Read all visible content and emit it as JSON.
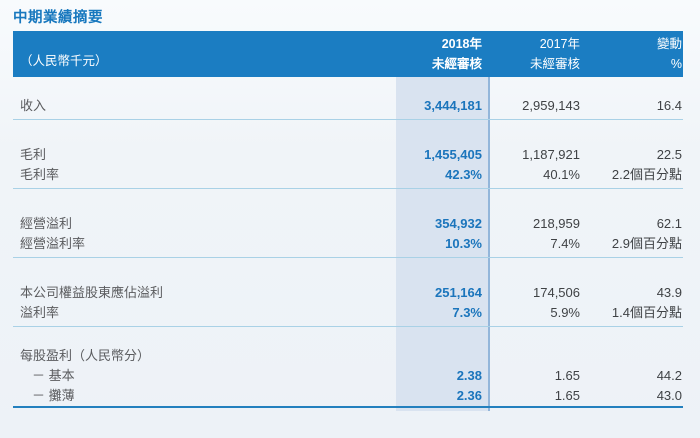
{
  "page": {
    "title": "中期業績摘要"
  },
  "colors": {
    "accent_blue": "#1B7DC2",
    "value_blue": "#1B75BC",
    "band_fill": "#D9E3F0",
    "band_border": "#93B6DA",
    "separator_thin": "#A9D1E6",
    "separator_thick": "#2380BE",
    "label_gray": "#5A5B5E",
    "value_gray": "#3F4245",
    "page_background": "#EDF2F7"
  },
  "table": {
    "header": {
      "unit_label": "（人民幣千元）",
      "col_2018_line1": "2018年",
      "col_2018_line2": "未經審核",
      "col_2017_line1": "2017年",
      "col_2017_line2": "未經審核",
      "col_change_line1": "變動",
      "col_change_line2": "%"
    },
    "sections": [
      {
        "rows": [
          {
            "label": "收入",
            "v2018": "3,444,181",
            "v2017": "2,959,143",
            "change": "16.4"
          }
        ]
      },
      {
        "rows": [
          {
            "label": "毛利",
            "v2018": "1,455,405",
            "v2017": "1,187,921",
            "change": "22.5"
          },
          {
            "label": "毛利率",
            "v2018": "42.3%",
            "v2017": "40.1%",
            "change": "2.2個百分點"
          }
        ]
      },
      {
        "rows": [
          {
            "label": "經營溢利",
            "v2018": "354,932",
            "v2017": "218,959",
            "change": "62.1"
          },
          {
            "label": "經營溢利率",
            "v2018": "10.3%",
            "v2017": "7.4%",
            "change": "2.9個百分點"
          }
        ]
      },
      {
        "rows": [
          {
            "label": "本公司權益股東應佔溢利",
            "v2018": "251,164",
            "v2017": "174,506",
            "change": "43.9"
          },
          {
            "label": "溢利率",
            "v2018": "7.3%",
            "v2017": "5.9%",
            "change": "1.4個百分點"
          }
        ]
      },
      {
        "rows": [
          {
            "label": "每股盈利（人民幣分）",
            "v2018": "",
            "v2017": "",
            "change": ""
          },
          {
            "label": "－ 基本",
            "v2018": "2.38",
            "v2017": "1.65",
            "change": "44.2"
          },
          {
            "label": "－ 攤薄",
            "v2018": "2.36",
            "v2017": "1.65",
            "change": "43.0"
          }
        ]
      }
    ]
  }
}
